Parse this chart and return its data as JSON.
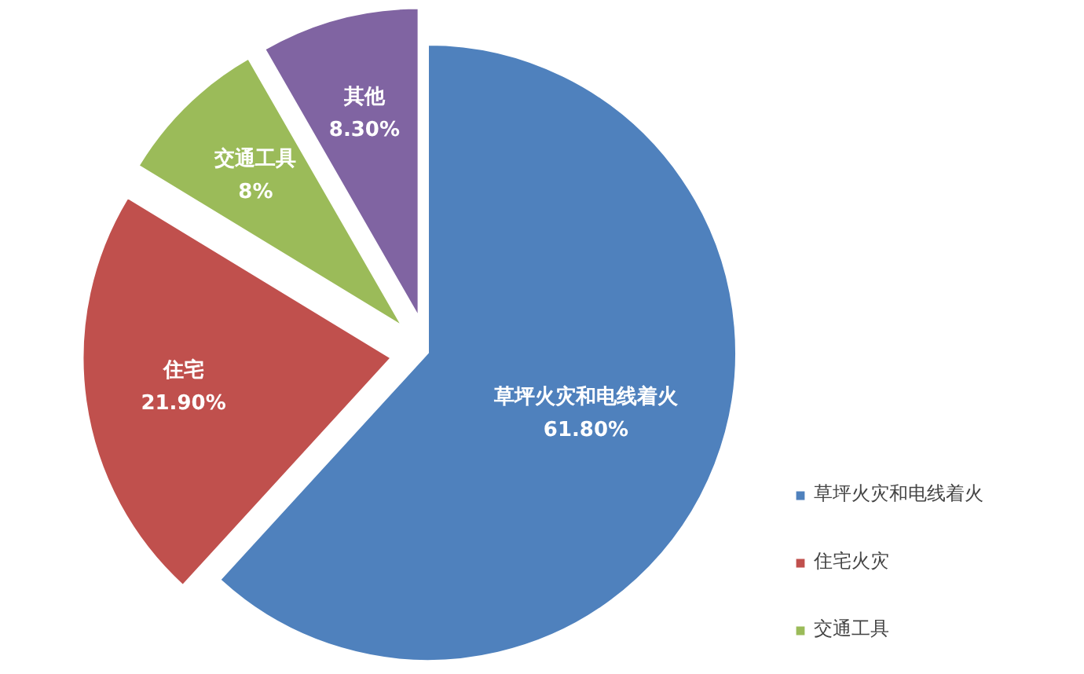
{
  "chart_data": {
    "type": "pie",
    "categories": [
      "草坪火灾和电线着火",
      "住宅火灾",
      "交通工具",
      null
    ],
    "values": [
      61.8,
      21.9,
      8,
      8.3
    ],
    "colors": [
      "#4f81bd",
      "#c0504d",
      "#9bbb59",
      "#8064a2"
    ],
    "value_labels": [
      "草坪火灾和电线着火\n61.80%",
      "住宅\n21.90%",
      "交通工具\n8%",
      "其他\n8.30%"
    ],
    "legend": "right"
  }
}
